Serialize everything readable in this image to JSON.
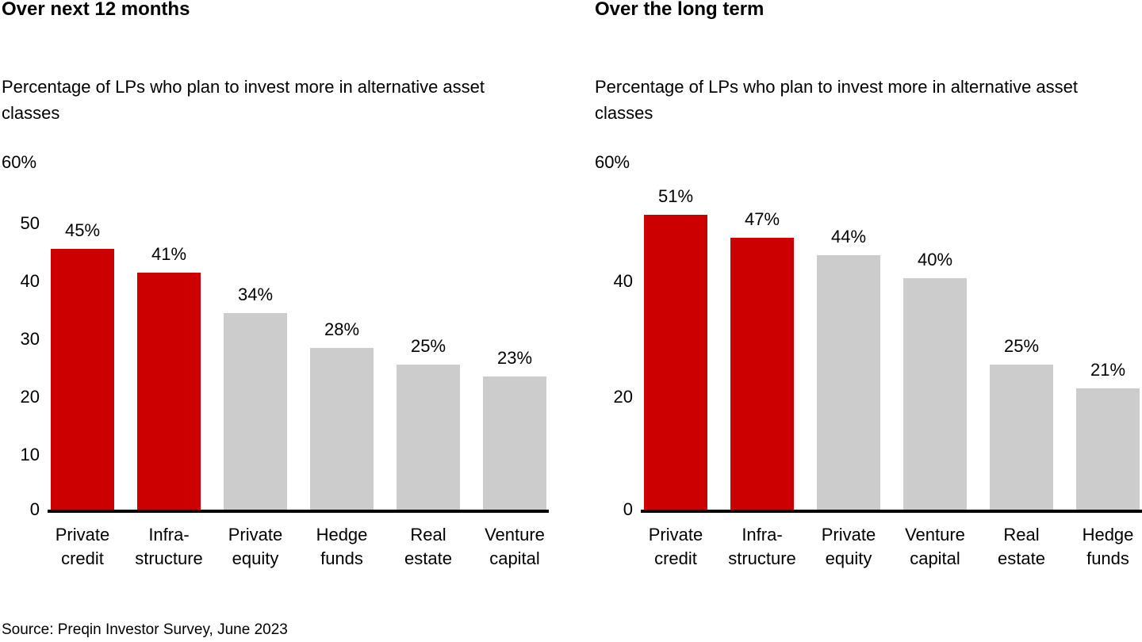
{
  "source": "Source: Preqin Investor Survey, June 2023",
  "colors": {
    "highlight": "#cc0000",
    "neutral": "#cccccc",
    "axis": "#000000",
    "text": "#000000",
    "background": "#ffffff"
  },
  "chart_data": [
    {
      "type": "bar",
      "title": "Over next 12 months",
      "subtitle": "Percentage of LPs who plan to invest more in alternative asset classes",
      "categories": [
        "Private credit",
        "Infra-structure",
        "Private equity",
        "Hedge funds",
        "Real estate",
        "Venture capital"
      ],
      "category_lines": [
        [
          "Private",
          "credit"
        ],
        [
          "Infra-",
          "structure"
        ],
        [
          "Private",
          "equity"
        ],
        [
          "Hedge",
          "funds"
        ],
        [
          "Real",
          "estate"
        ],
        [
          "Venture",
          "capital"
        ]
      ],
      "values": [
        45,
        41,
        34,
        28,
        25,
        23
      ],
      "value_labels": [
        "45%",
        "41%",
        "34%",
        "28%",
        "25%",
        "23%"
      ],
      "bar_colors": [
        "#cc0000",
        "#cc0000",
        "#cccccc",
        "#cccccc",
        "#cccccc",
        "#cccccc"
      ],
      "y_axis_top_label": "60%",
      "y_ticks": [
        50,
        40,
        30,
        20,
        10,
        0
      ],
      "ylim": [
        0,
        60
      ],
      "xlabel": "",
      "ylabel": "",
      "grid": false,
      "legend": "none"
    },
    {
      "type": "bar",
      "title": "Over the long term",
      "subtitle": "Percentage of LPs who plan to invest more in alternative asset classes",
      "categories": [
        "Private credit",
        "Infra-structure",
        "Private equity",
        "Venture capital",
        "Real estate",
        "Hedge funds"
      ],
      "category_lines": [
        [
          "Private",
          "credit"
        ],
        [
          "Infra-",
          "structure"
        ],
        [
          "Private",
          "equity"
        ],
        [
          "Venture",
          "capital"
        ],
        [
          "Real",
          "estate"
        ],
        [
          "Hedge",
          "funds"
        ]
      ],
      "values": [
        51,
        47,
        44,
        40,
        25,
        21
      ],
      "value_labels": [
        "51%",
        "47%",
        "44%",
        "40%",
        "25%",
        "21%"
      ],
      "bar_colors": [
        "#cc0000",
        "#cc0000",
        "#cccccc",
        "#cccccc",
        "#cccccc",
        "#cccccc"
      ],
      "y_axis_top_label": "60%",
      "y_ticks": [
        40,
        20,
        0
      ],
      "ylim": [
        0,
        60
      ],
      "xlabel": "",
      "ylabel": "",
      "grid": false,
      "legend": "none"
    }
  ]
}
